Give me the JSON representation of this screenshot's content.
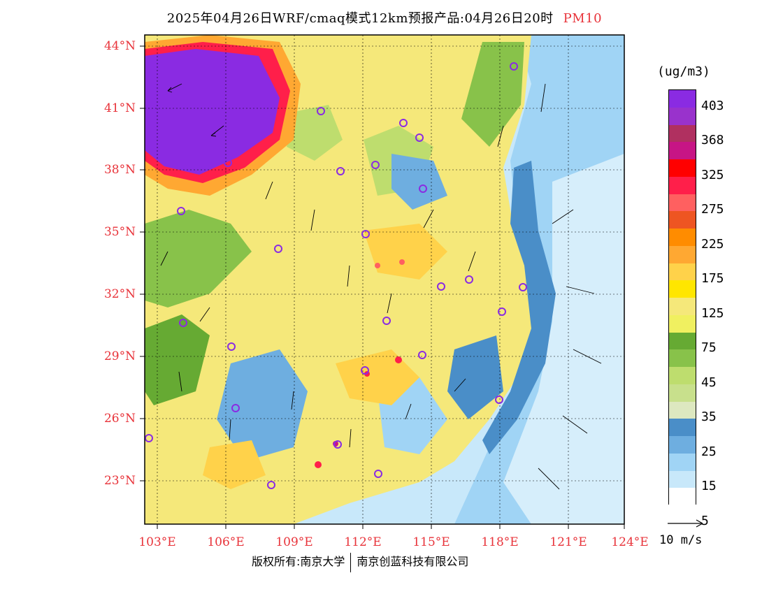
{
  "title": "2025年04月26日WRF/cmaq模式12km预报产品:04月26日20时",
  "variable": "PM10",
  "units": "(ug/m3)",
  "lat_labels": [
    "44°N",
    "41°N",
    "38°N",
    "35°N",
    "32°N",
    "29°N",
    "26°N",
    "23°N"
  ],
  "lon_labels": [
    "103°E",
    "106°E",
    "109°E",
    "112°E",
    "115°E",
    "118°E",
    "121°E",
    "124°E"
  ],
  "colorbar_labels": [
    "403",
    "368",
    "325",
    "275",
    "225",
    "175",
    "125",
    "75",
    "45",
    "35",
    "25",
    "15",
    "5"
  ],
  "colorbar_colors": [
    "#8a2be2",
    "#9932cc",
    "#b03060",
    "#c71585",
    "#ff0000",
    "#ff1f4a",
    "#ff6060",
    "#ee5522",
    "#ff8c00",
    "#ffa832",
    "#ffd24a",
    "#ffe600",
    "#f5e87a",
    "#f0f060",
    "#66aa33",
    "#88c24a",
    "#bedd6e",
    "#c8e08c",
    "#dde8c0",
    "#4a8ec8",
    "#6eaee0",
    "#a0d4f5",
    "#c8e8fa",
    "#ffffff"
  ],
  "wind_key": "10 m/s",
  "copyright": {
    "left": "版权所有:南京大学",
    "right": "南京创蓝科技有限公司"
  }
}
